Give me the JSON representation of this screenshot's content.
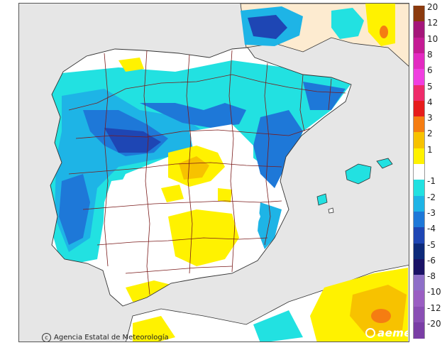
{
  "map": {
    "attribution": "Agencia Estatal de Meteorología",
    "logo_text": "aemet",
    "colors": {
      "sea": "#e6e6e6",
      "land": "#ffffff",
      "france": "#fdebd0",
      "border": "#7a1a1a",
      "coast": "#333333"
    }
  },
  "legend": {
    "entries": [
      {
        "label": "20",
        "color": "#8b3a0e"
      },
      {
        "label": "12",
        "color": "#a4167a"
      },
      {
        "label": "10",
        "color": "#c41b94"
      },
      {
        "label": "8",
        "color": "#e22ac1"
      },
      {
        "label": "6",
        "color": "#f03fe0"
      },
      {
        "label": "5",
        "color": "#ee2b6a"
      },
      {
        "label": "4",
        "color": "#e61c1c"
      },
      {
        "label": "3",
        "color": "#f57d12"
      },
      {
        "label": "2",
        "color": "#f7c200"
      },
      {
        "label": "1",
        "color": "#fff200"
      },
      {
        "label": "",
        "color": "#ffffff"
      },
      {
        "label": "-1",
        "color": "#22e1e1"
      },
      {
        "label": "-2",
        "color": "#1eb4e6"
      },
      {
        "label": "-3",
        "color": "#1e78d8"
      },
      {
        "label": "-4",
        "color": "#1e46b4"
      },
      {
        "label": "-5",
        "color": "#0d2a7a"
      },
      {
        "label": "-6",
        "color": "#1a1266"
      },
      {
        "label": "-8",
        "color": "#8e6fc8"
      },
      {
        "label": "-10",
        "color": "#9a5ec2"
      },
      {
        "label": "-12",
        "color": "#8a4fb4"
      },
      {
        "label": "-20",
        "color": "#7a3ea5"
      }
    ]
  }
}
